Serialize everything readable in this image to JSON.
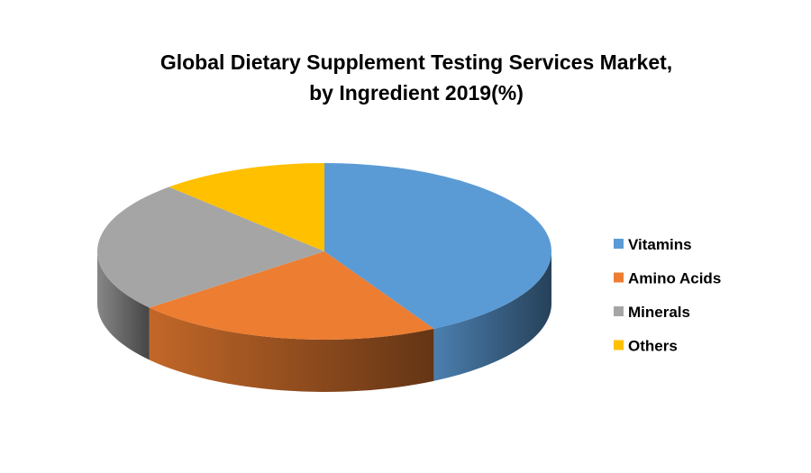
{
  "chart_data": {
    "type": "pie",
    "style": "3d",
    "title_lines": [
      "Global Dietary Supplement Testing Services Market,",
      "by Ingredient 2019(%)"
    ],
    "categories": [
      "Vitamins",
      "Amino Acids",
      "Minerals",
      "Others"
    ],
    "values": [
      42,
      22,
      24,
      12
    ],
    "colors": [
      "#5B9BD5",
      "#ED7D31",
      "#A5A5A5",
      "#FFC000"
    ],
    "legend_position": "right"
  }
}
